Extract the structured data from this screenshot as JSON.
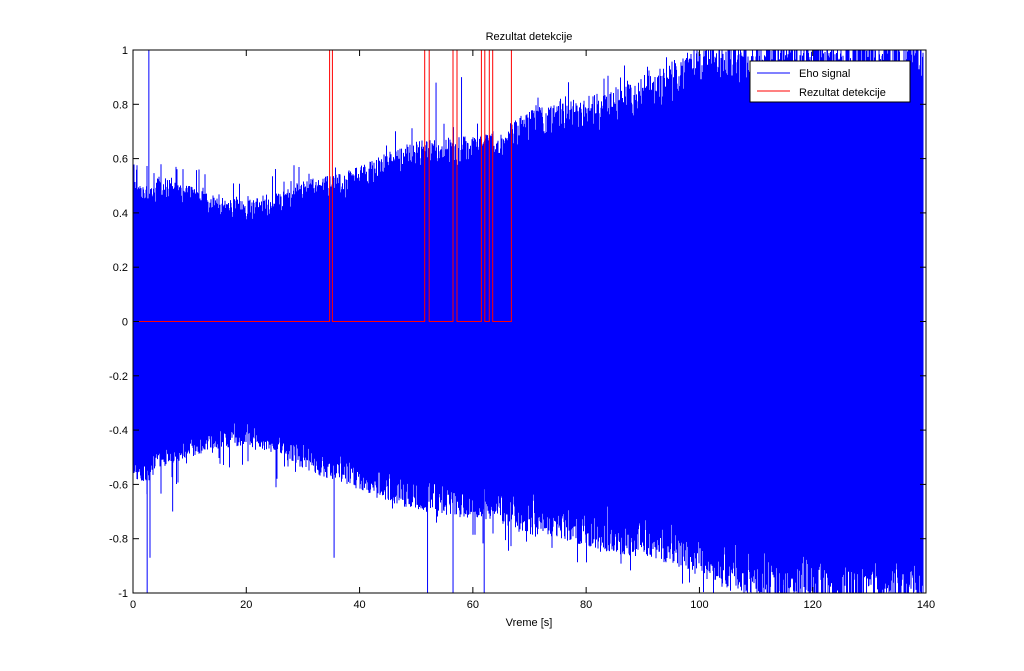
{
  "chart_data": {
    "type": "line",
    "title": "Rezultat detekcije",
    "xlabel": "Vreme [s]",
    "ylabel": "",
    "xlim": [
      0,
      140
    ],
    "ylim": [
      -1,
      1
    ],
    "x_ticks": [
      0,
      20,
      40,
      60,
      80,
      100,
      120,
      140
    ],
    "y_ticks": [
      -1,
      -0.8,
      -0.6,
      -0.4,
      -0.2,
      0,
      0.2,
      0.4,
      0.6,
      0.8,
      1
    ],
    "x_tick_labels": [
      "0",
      "20",
      "40",
      "60",
      "80",
      "100",
      "120",
      "140"
    ],
    "y_tick_labels": [
      "-1",
      "-0.8",
      "-0.6",
      "-0.4",
      "-0.2",
      "0",
      "0.2",
      "0.4",
      "0.6",
      "0.8",
      "1"
    ],
    "grid": false,
    "legend_position": "top-right",
    "series": [
      {
        "name": "Eho signal",
        "color": "#0000ff",
        "style": "dense-oscillating",
        "upper_envelope": {
          "t": [
            0,
            2,
            5,
            10,
            15,
            20,
            25,
            30,
            35,
            40,
            45,
            50,
            55,
            60,
            65,
            70,
            75,
            80,
            85,
            90,
            95,
            100,
            105,
            110,
            115,
            120,
            125,
            130,
            135,
            139.5
          ],
          "amp": [
            0.5,
            0.48,
            0.52,
            0.48,
            0.44,
            0.43,
            0.45,
            0.5,
            0.52,
            0.55,
            0.6,
            0.64,
            0.65,
            0.66,
            0.68,
            0.75,
            0.78,
            0.8,
            0.82,
            0.87,
            0.92,
            0.98,
            1.0,
            1.0,
            1.0,
            1.0,
            1.0,
            1.0,
            1.0,
            1.0
          ]
        },
        "lower_envelope": {
          "t": [
            0,
            2,
            5,
            10,
            15,
            20,
            25,
            30,
            35,
            40,
            45,
            50,
            55,
            60,
            65,
            70,
            75,
            80,
            85,
            90,
            95,
            100,
            105,
            110,
            115,
            120,
            125,
            130,
            135,
            139.5
          ],
          "amp": [
            -0.55,
            -0.58,
            -0.52,
            -0.48,
            -0.45,
            -0.44,
            -0.47,
            -0.52,
            -0.56,
            -0.6,
            -0.64,
            -0.67,
            -0.68,
            -0.7,
            -0.72,
            -0.76,
            -0.77,
            -0.8,
            -0.82,
            -0.84,
            -0.86,
            -0.9,
            -0.95,
            -0.99,
            -1.0,
            -1.0,
            -1.0,
            -1.0,
            -1.0,
            -1.0
          ]
        },
        "spikes": [
          {
            "t": 2.5,
            "y": -1.0
          },
          {
            "t": 2.8,
            "y": 1.0
          },
          {
            "t": 3.0,
            "y": -0.87
          },
          {
            "t": 7.0,
            "y": -0.7
          },
          {
            "t": 35.5,
            "y": -0.87
          },
          {
            "t": 52.0,
            "y": -1.0
          },
          {
            "t": 56.5,
            "y": -1.0
          },
          {
            "t": 62.0,
            "y": -1.0
          },
          {
            "t": 53.5,
            "y": 0.88
          },
          {
            "t": 58.0,
            "y": 0.9
          },
          {
            "t": 115.0,
            "y": -0.97
          },
          {
            "t": 120.0,
            "y": -0.92
          }
        ]
      },
      {
        "name": "Rezultat detekcije",
        "color": "#ff0000",
        "style": "step",
        "x": [
          0,
          34.7,
          34.7,
          35.2,
          35.2,
          51.5,
          51.5,
          52.3,
          52.3,
          56.5,
          56.5,
          57.2,
          57.2,
          61.5,
          61.5,
          62.1,
          62.1,
          62.9,
          62.9,
          63.5,
          63.5,
          66.8,
          66.8,
          67.0
        ],
        "y": [
          0,
          0,
          1,
          1,
          0,
          0,
          1,
          1,
          0,
          0,
          1,
          1,
          0,
          0,
          1,
          1,
          0,
          0,
          1,
          1,
          0,
          0,
          1,
          1
        ]
      }
    ]
  }
}
